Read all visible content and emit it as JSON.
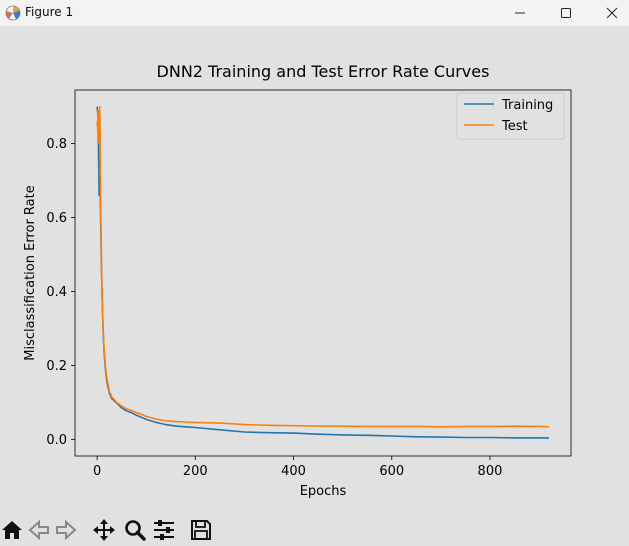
{
  "window": {
    "title": "Figure 1",
    "icons": [
      "matplotlib-icon",
      "minimize-icon",
      "maximize-icon",
      "close-icon"
    ]
  },
  "toolbar": {
    "icons": [
      "home-icon",
      "back-arrow-icon",
      "forward-arrow-icon",
      "pan-move-icon",
      "zoom-magnifier-icon",
      "configure-subplots-icon",
      "save-floppy-icon"
    ]
  },
  "chart_data": {
    "type": "line",
    "title": "DNN2 Training and Test Error Rate Curves",
    "xlabel": "Epochs",
    "ylabel": "Misclassification Error Rate",
    "xlim": [
      -45,
      965
    ],
    "ylim": [
      -0.045,
      0.945
    ],
    "xticks": [
      0,
      200,
      400,
      600,
      800
    ],
    "yticks": [
      0.0,
      0.2,
      0.4,
      0.6,
      0.8
    ],
    "ytick_labels": [
      "0.0",
      "0.2",
      "0.4",
      "0.6",
      "0.8"
    ],
    "grid": false,
    "legend": "upper right",
    "series": [
      {
        "name": "Training",
        "color": "#1f77b4",
        "x": [
          0,
          2,
          4,
          6,
          8,
          10,
          12,
          14,
          17,
          20,
          25,
          30,
          40,
          50,
          60,
          70,
          80,
          90,
          100,
          120,
          140,
          160,
          180,
          200,
          250,
          300,
          350,
          400,
          450,
          500,
          550,
          600,
          650,
          700,
          750,
          800,
          850,
          900,
          920
        ],
        "y": [
          0.9,
          0.87,
          0.66,
          0.71,
          0.53,
          0.4,
          0.3,
          0.24,
          0.19,
          0.155,
          0.125,
          0.11,
          0.098,
          0.085,
          0.077,
          0.072,
          0.065,
          0.06,
          0.054,
          0.046,
          0.04,
          0.036,
          0.034,
          0.032,
          0.026,
          0.02,
          0.018,
          0.017,
          0.014,
          0.012,
          0.011,
          0.009,
          0.007,
          0.006,
          0.005,
          0.005,
          0.004,
          0.004,
          0.004
        ]
      },
      {
        "name": "Test",
        "color": "#ff7f0e",
        "x": [
          0,
          1,
          2,
          3,
          4,
          5,
          6,
          7,
          8,
          10,
          12,
          14,
          17,
          20,
          25,
          30,
          40,
          50,
          60,
          70,
          80,
          90,
          100,
          120,
          140,
          160,
          180,
          200,
          250,
          300,
          350,
          400,
          450,
          500,
          550,
          600,
          650,
          700,
          750,
          800,
          850,
          900,
          920
        ],
        "y": [
          0.86,
          0.84,
          0.89,
          0.85,
          0.8,
          0.9,
          0.86,
          0.7,
          0.58,
          0.4,
          0.31,
          0.25,
          0.2,
          0.165,
          0.13,
          0.115,
          0.1,
          0.09,
          0.082,
          0.078,
          0.072,
          0.068,
          0.062,
          0.055,
          0.05,
          0.048,
          0.047,
          0.046,
          0.044,
          0.04,
          0.038,
          0.037,
          0.036,
          0.036,
          0.035,
          0.035,
          0.035,
          0.034,
          0.035,
          0.035,
          0.036,
          0.035,
          0.034
        ]
      }
    ]
  }
}
